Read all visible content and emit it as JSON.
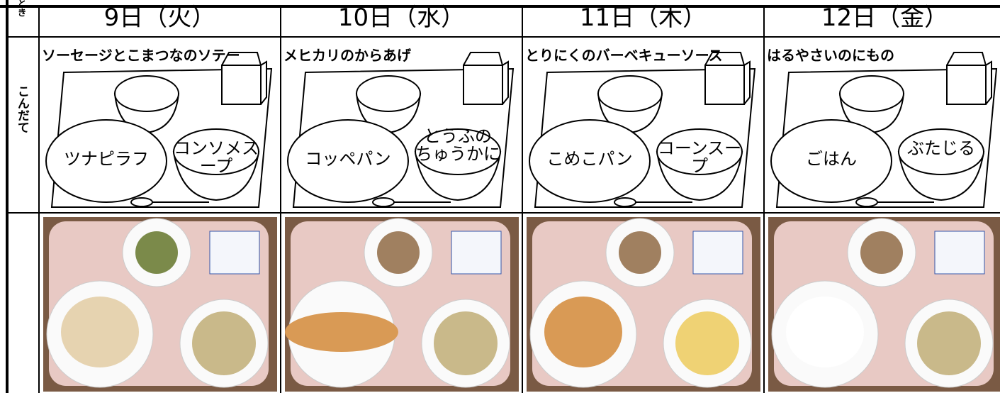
{
  "header": {
    "time_label": "とき",
    "menu_label": "こんだて",
    "days": [
      "9日（火）",
      "10日（水）",
      "11日（木）",
      "12日（金）"
    ]
  },
  "menus": [
    {
      "title": "ソーセージとこまつなのソテー",
      "items": [
        "ツナピラフ",
        "コンソメスープ"
      ]
    },
    {
      "title": "メヒカリのからあげ",
      "items": [
        "コッペパン",
        "とうふの\nちゅうかに"
      ]
    },
    {
      "title": "とりにくのバーベキューソース",
      "items": [
        "こめこパン",
        "コーンスープ"
      ]
    },
    {
      "title": "はるやさいのにもの",
      "items": [
        "ごはん",
        "ぶたじる"
      ]
    }
  ]
}
